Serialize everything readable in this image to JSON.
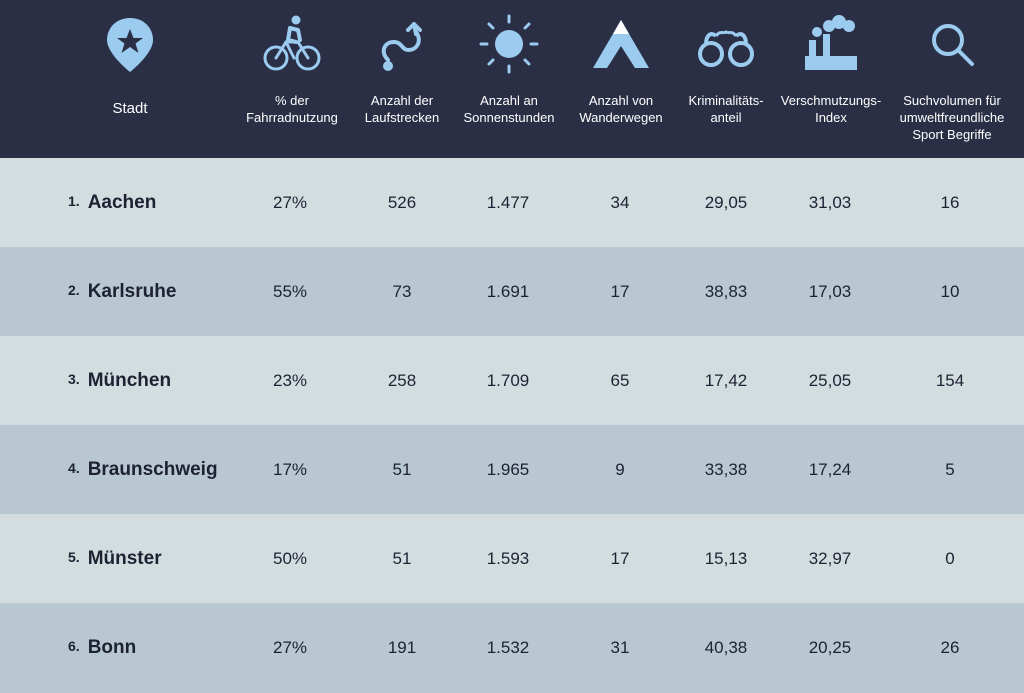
{
  "colors": {
    "header_bg": "#2b2f45",
    "icon_fill": "#9ccbf0",
    "row_light": "#d3dde0",
    "row_dark": "#b8c7d1",
    "text": "#1d2233"
  },
  "columns": [
    {
      "label": "Stadt",
      "icon": "map-pin-star-icon"
    },
    {
      "label": "% der\nFahrradnutzung",
      "icon": "cyclist-icon"
    },
    {
      "label": "Anzahl der\nLaufstrecken",
      "icon": "winding-path-icon"
    },
    {
      "label": "Anzahl an\nSonnenstunden",
      "icon": "sun-icon"
    },
    {
      "label": "Anzahl von\nWanderwegen",
      "icon": "mountain-icon"
    },
    {
      "label": "Kriminalitäts-\nanteil",
      "icon": "handcuffs-icon"
    },
    {
      "label": "Verschmutzungs-\nIndex",
      "icon": "factory-icon"
    },
    {
      "label": "Suchvolumen für\numweltfreundliche\nSport Begriffe",
      "icon": "search-icon"
    }
  ],
  "rows": [
    {
      "rank": "1.",
      "city": "Aachen",
      "bike": "27%",
      "runs": "526",
      "sun": "1.477",
      "hikes": "34",
      "crime": "29,05",
      "pollution": "31,03",
      "search": "16"
    },
    {
      "rank": "2.",
      "city": "Karlsruhe",
      "bike": "55%",
      "runs": "73",
      "sun": "1.691",
      "hikes": "17",
      "crime": "38,83",
      "pollution": "17,03",
      "search": "10"
    },
    {
      "rank": "3.",
      "city": "München",
      "bike": "23%",
      "runs": "258",
      "sun": "1.709",
      "hikes": "65",
      "crime": "17,42",
      "pollution": "25,05",
      "search": "154"
    },
    {
      "rank": "4.",
      "city": "Braunschweig",
      "bike": "17%",
      "runs": "51",
      "sun": "1.965",
      "hikes": "9",
      "crime": "33,38",
      "pollution": "17,24",
      "search": "5"
    },
    {
      "rank": "5.",
      "city": "Münster",
      "bike": "50%",
      "runs": "51",
      "sun": "1.593",
      "hikes": "17",
      "crime": "15,13",
      "pollution": "32,97",
      "search": "0"
    },
    {
      "rank": "6.",
      "city": "Bonn",
      "bike": "27%",
      "runs": "191",
      "sun": "1.532",
      "hikes": "31",
      "crime": "40,38",
      "pollution": "20,25",
      "search": "26"
    }
  ]
}
